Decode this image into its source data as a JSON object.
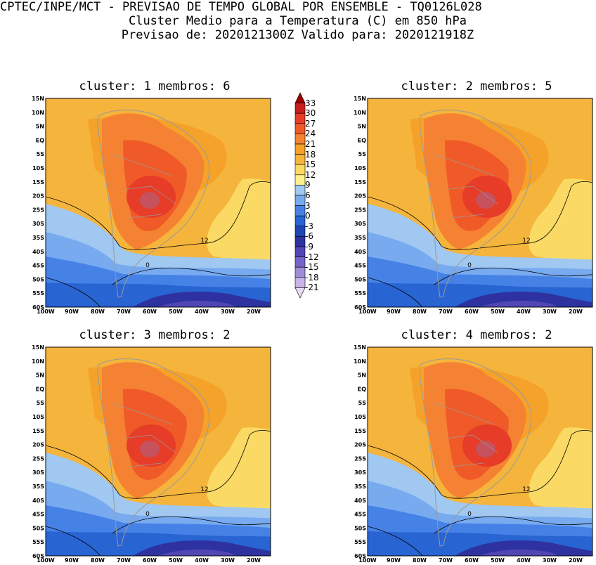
{
  "header": {
    "line1": "CPTEC/INPE/MCT - PREVISAO DE TEMPO GLOBAL POR ENSEMBLE - TQ0126L028",
    "line2": "Cluster Medio para a Temperatura (C) em 850 hPa",
    "line3": "Previsao de: 2020121300Z   Valido para: 2020121918Z"
  },
  "panels": [
    {
      "title": "cluster: 1  membros: 6"
    },
    {
      "title": "cluster: 2  membros: 5"
    },
    {
      "title": "cluster: 3  membros: 2"
    },
    {
      "title": "cluster: 4  membros: 2"
    }
  ],
  "axes": {
    "lat_ticks": [
      "15N",
      "10N",
      "5N",
      "EQ",
      "5S",
      "10S",
      "15S",
      "20S",
      "25S",
      "30S",
      "35S",
      "40S",
      "45S",
      "50S",
      "55S",
      "60S"
    ],
    "lon_ticks": [
      "100W",
      "90W",
      "80W",
      "70W",
      "60W",
      "50W",
      "40W",
      "30W",
      "20W"
    ]
  },
  "contour_labels": {
    "twelve": "12",
    "zero": "0"
  },
  "colorbar": {
    "labels": [
      "33",
      "30",
      "27",
      "24",
      "21",
      "18",
      "15",
      "12",
      "9",
      "6",
      "3",
      "0",
      "-3",
      "-6",
      "-9",
      "-12",
      "-15",
      "-18",
      "-21"
    ],
    "colors": [
      "#a00000",
      "#c81e1e",
      "#e63c28",
      "#f05a28",
      "#f58232",
      "#f5a028",
      "#f5b43c",
      "#fada64",
      "#fff08c",
      "#a0c8f0",
      "#78aaf0",
      "#4682e6",
      "#2864d2",
      "#1e46b4",
      "#2d32a0",
      "#5046b4",
      "#7864c8",
      "#a08cd7",
      "#c8b4e6",
      "#e6dcf5"
    ]
  }
}
